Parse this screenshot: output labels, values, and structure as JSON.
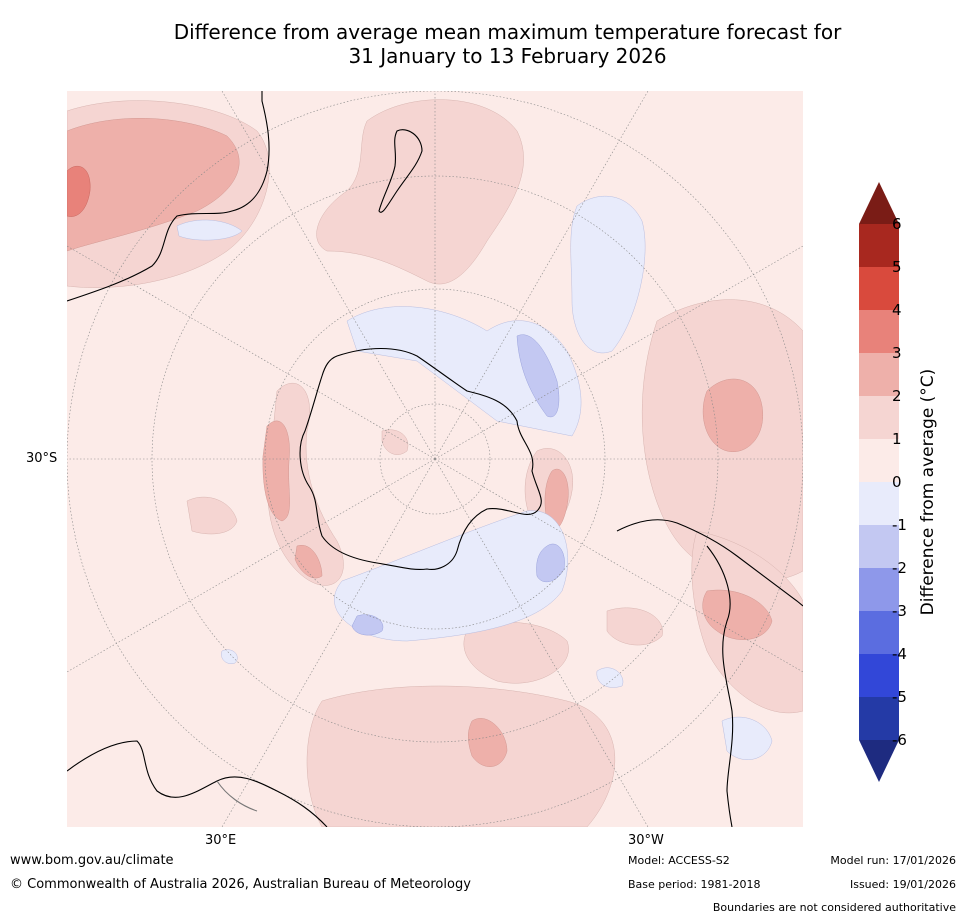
{
  "title": {
    "line1": "Difference from average mean maximum temperature forecast for",
    "line2": "31 January to 13 February 2026"
  },
  "map": {
    "projection": "south-polar-stereographic",
    "latitude_label": "30°S",
    "longitude_labels": {
      "east": "30°E",
      "west": "30°W"
    }
  },
  "colorbar": {
    "label": "Difference from average (°C)",
    "ticks": [
      "6",
      "5",
      "4",
      "3",
      "2",
      "1",
      "0",
      "-1",
      "-2",
      "-3",
      "-4",
      "-5",
      "-6"
    ],
    "colors": {
      "above_6": "#7a1c16",
      "5_6": "#a8281f",
      "4_5": "#d94a3d",
      "3_4": "#e8827a",
      "2_3": "#eeb0aa",
      "1_2": "#f5d5d2",
      "0_1": "#fcebe8",
      "m1_0": "#e8ebfb",
      "m2_m1": "#c3c8f2",
      "m3_m2": "#8e98ea",
      "m4_m3": "#5b6de0",
      "m5_m4": "#3247d8",
      "m6_m5": "#243aa6",
      "below_m6": "#1e2b80"
    }
  },
  "footer": {
    "website": "www.bom.gov.au/climate",
    "copyright": "© Commonwealth of Australia 2026, Australian Bureau of Meteorology",
    "model": "Model: ACCESS-S2",
    "base_period": "Base period: 1981-2018",
    "model_run": "Model run: 17/01/2026",
    "issued": "Issued: 19/01/2026",
    "disclaimer": "Boundaries are not considered authoritative"
  }
}
